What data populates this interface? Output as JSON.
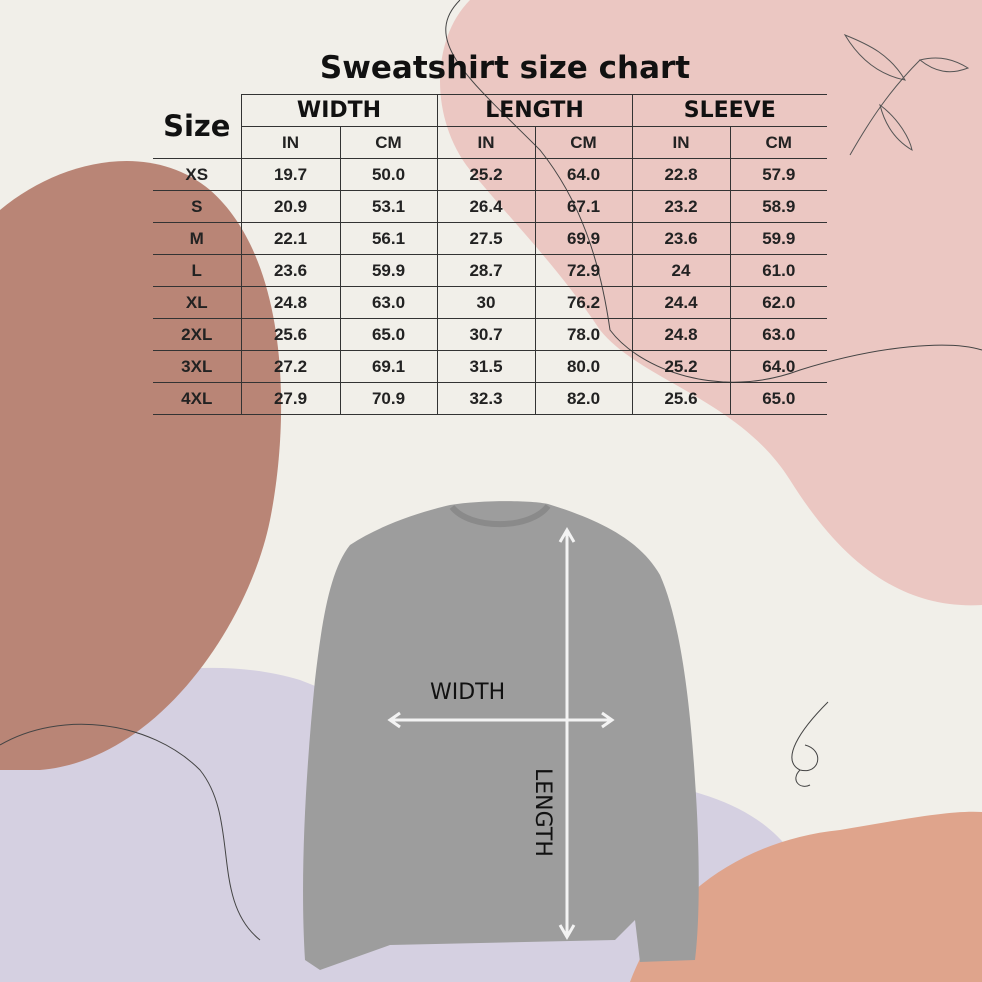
{
  "title": "Sweatshirt size chart",
  "table": {
    "size_header": "Size",
    "groups": [
      "WIDTH",
      "LENGTH",
      "SLEEVE"
    ],
    "units": [
      "IN",
      "CM",
      "IN",
      "CM",
      "IN",
      "CM"
    ],
    "rows": [
      {
        "size": "XS",
        "values": [
          "19.7",
          "50.0",
          "25.2",
          "64.0",
          "22.8",
          "57.9"
        ]
      },
      {
        "size": "S",
        "values": [
          "20.9",
          "53.1",
          "26.4",
          "67.1",
          "23.2",
          "58.9"
        ]
      },
      {
        "size": "M",
        "values": [
          "22.1",
          "56.1",
          "27.5",
          "69.9",
          "23.6",
          "59.9"
        ]
      },
      {
        "size": "L",
        "values": [
          "23.6",
          "59.9",
          "28.7",
          "72.9",
          "24",
          "61.0"
        ]
      },
      {
        "size": "XL",
        "values": [
          "24.8",
          "63.0",
          "30",
          "76.2",
          "24.4",
          "62.0"
        ]
      },
      {
        "size": "2XL",
        "values": [
          "25.6",
          "65.0",
          "30.7",
          "78.0",
          "24.8",
          "63.0"
        ]
      },
      {
        "size": "3XL",
        "values": [
          "27.2",
          "69.1",
          "31.5",
          "80.0",
          "25.2",
          "64.0"
        ]
      },
      {
        "size": "4XL",
        "values": [
          "27.9",
          "70.9",
          "32.3",
          "82.0",
          "25.6",
          "65.0"
        ]
      }
    ]
  },
  "diagram": {
    "width_label": "WIDTH",
    "length_label": "LENGTH"
  },
  "colors": {
    "background": "#f1efe9",
    "brown_blob": "#b98576",
    "pink_blob": "#ebc7c2",
    "lavender_blob": "#d5d0e1",
    "salmon_blob": "#dfa48c",
    "sweatshirt": "#9d9d9d"
  }
}
